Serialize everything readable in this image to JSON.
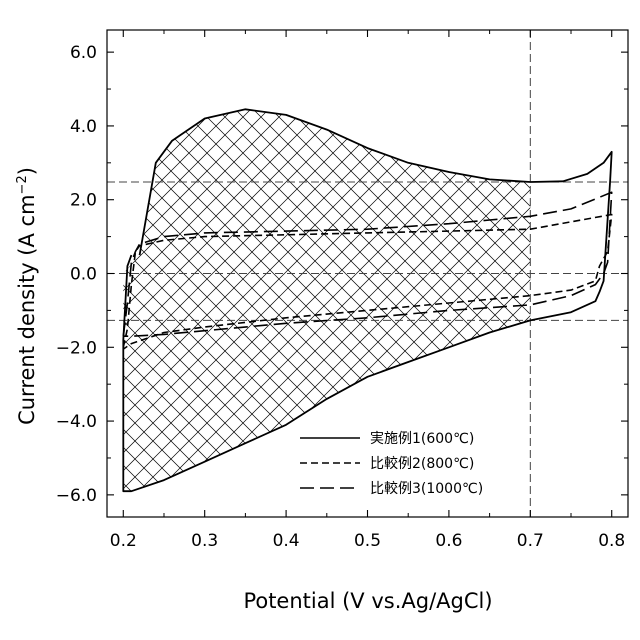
{
  "chart_data": {
    "type": "line",
    "xlabel": "Potential (V vs.Ag/AgCl)",
    "ylabel_main": "Current density (A cm",
    "ylabel_sup": "−2",
    "ylabel_close": ")",
    "xlim": [
      0.18,
      0.82
    ],
    "ylim": [
      -6.6,
      6.6
    ],
    "x_ticks": [
      0.2,
      0.3,
      0.4,
      0.5,
      0.6,
      0.7,
      0.8
    ],
    "x_tick_labels": [
      "0.2",
      "0.3",
      "0.4",
      "0.5",
      "0.6",
      "0.7",
      "0.8"
    ],
    "y_ticks": [
      -6,
      -4,
      -2,
      0,
      2,
      4,
      6
    ],
    "y_tick_labels": [
      "−6.0",
      "−4.0",
      "−2.0",
      "0.0",
      "2.0",
      "4.0",
      "6.0"
    ],
    "reference_lines": {
      "vertical_x": [
        0.7
      ],
      "horizontal_y": [
        2.48,
        -1.27,
        0.0
      ]
    },
    "hatched_region": {
      "x_range": [
        0.2,
        0.7
      ],
      "pattern": "crosshatch-above-and-below"
    },
    "legend_position": "lower-right",
    "series": [
      {
        "name": "実施例1(600℃)",
        "style": "solid",
        "anodic": {
          "x": [
            0.22,
            0.24,
            0.26,
            0.3,
            0.35,
            0.4,
            0.45,
            0.5,
            0.55,
            0.6,
            0.65,
            0.7,
            0.74,
            0.77,
            0.79,
            0.8
          ],
          "y": [
            0.5,
            3.0,
            3.6,
            4.2,
            4.45,
            4.3,
            3.9,
            3.4,
            3.0,
            2.75,
            2.55,
            2.48,
            2.5,
            2.7,
            3.0,
            3.3
          ]
        },
        "cathodic": {
          "x": [
            0.798,
            0.79,
            0.785,
            0.78,
            0.75,
            0.7,
            0.65,
            0.6,
            0.55,
            0.5,
            0.45,
            0.4,
            0.35,
            0.3,
            0.25,
            0.21,
            0.2,
            0.2,
            0.205,
            0.21
          ],
          "y": [
            2.5,
            -0.2,
            -0.5,
            -0.75,
            -1.05,
            -1.27,
            -1.6,
            -2.0,
            -2.4,
            -2.8,
            -3.4,
            -4.1,
            -4.6,
            -5.1,
            -5.6,
            -5.9,
            -5.9,
            -1.8,
            0.2,
            0.5
          ]
        }
      },
      {
        "name": "比較例2(800℃)",
        "style": "dashed",
        "anodic": {
          "x": [
            0.2,
            0.205,
            0.21,
            0.215,
            0.22,
            0.25,
            0.3,
            0.4,
            0.5,
            0.6,
            0.7,
            0.8
          ],
          "y": [
            -2.0,
            -1.5,
            -0.3,
            0.6,
            0.75,
            0.9,
            1.0,
            1.05,
            1.1,
            1.15,
            1.2,
            1.6
          ]
        },
        "cathodic": {
          "x": [
            0.8,
            0.795,
            0.785,
            0.78,
            0.75,
            0.7,
            0.6,
            0.5,
            0.4,
            0.3,
            0.25,
            0.21,
            0.2
          ],
          "y": [
            1.6,
            0.6,
            0.2,
            -0.2,
            -0.45,
            -0.6,
            -0.8,
            -1.0,
            -1.2,
            -1.45,
            -1.6,
            -1.9,
            -2.05
          ]
        }
      },
      {
        "name": "比較例3(1000℃)",
        "style": "long-dashed",
        "anodic": {
          "x": [
            0.2,
            0.205,
            0.21,
            0.215,
            0.22,
            0.25,
            0.3,
            0.4,
            0.5,
            0.6,
            0.65,
            0.7,
            0.75,
            0.8
          ],
          "y": [
            -1.7,
            -0.8,
            0.3,
            0.6,
            0.8,
            1.0,
            1.1,
            1.15,
            1.2,
            1.35,
            1.45,
            1.55,
            1.75,
            2.2
          ]
        },
        "cathodic": {
          "x": [
            0.8,
            0.795,
            0.79,
            0.785,
            0.78,
            0.75,
            0.7,
            0.6,
            0.5,
            0.4,
            0.3,
            0.25,
            0.21,
            0.2
          ],
          "y": [
            2.2,
            0.3,
            0.0,
            -0.15,
            -0.3,
            -0.6,
            -0.85,
            -1.0,
            -1.2,
            -1.35,
            -1.55,
            -1.65,
            -1.7,
            -1.7
          ]
        }
      }
    ]
  }
}
